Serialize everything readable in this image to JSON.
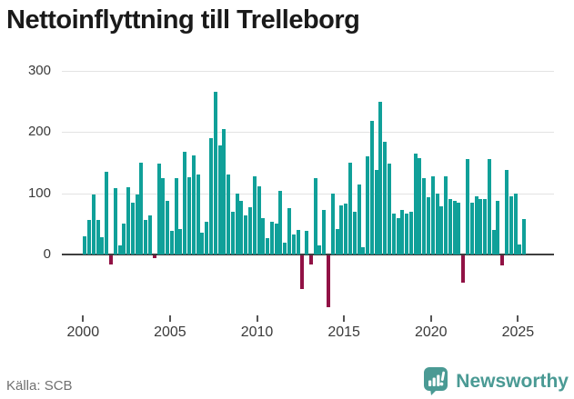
{
  "title": "Nettoinflyttning till Trelleborg",
  "source": "Källa: SCB",
  "logo": {
    "text": "Newsworthy"
  },
  "chart_data": {
    "type": "bar",
    "title": "Nettoinflyttning till Trelleborg",
    "xlabel": "",
    "ylabel": "",
    "start_year": 2000,
    "start_quarter": 1,
    "frequency": "quarterly",
    "values": [
      30,
      57,
      98,
      57,
      28,
      135,
      -15,
      108,
      15,
      50,
      109,
      85,
      98,
      150,
      57,
      64,
      -5,
      148,
      124,
      88,
      39,
      125,
      42,
      168,
      126,
      162,
      130,
      35,
      54,
      190,
      265,
      178,
      204,
      131,
      70,
      99,
      87,
      63,
      77,
      128,
      111,
      60,
      27,
      54,
      50,
      104,
      20,
      75,
      32,
      40,
      -55,
      39,
      -15,
      125,
      15,
      72,
      -85,
      100,
      42,
      80,
      83,
      150,
      70,
      114,
      12,
      160,
      218,
      138,
      249,
      183,
      148,
      67,
      60,
      72,
      67,
      70,
      165,
      157,
      124,
      94,
      127,
      100,
      78,
      128,
      90,
      88,
      84,
      -45,
      155,
      85,
      95,
      91,
      91,
      155,
      40,
      88,
      -17,
      138,
      95,
      100,
      17,
      58
    ],
    "yticks": [
      0,
      100,
      200,
      300
    ],
    "xticks": [
      2000,
      2005,
      2010,
      2015,
      2020,
      2025
    ],
    "ylim": [
      -100,
      300
    ],
    "grid": true,
    "legend": "none",
    "colors": {
      "positive": "#10a099",
      "negative": "#911245"
    }
  }
}
